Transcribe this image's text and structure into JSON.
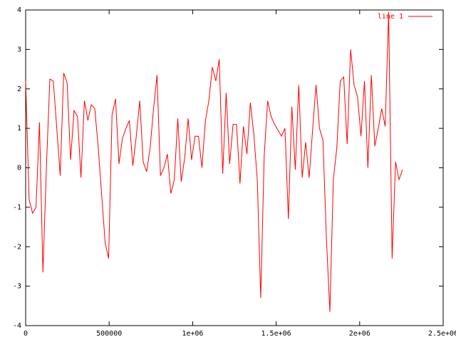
{
  "chart_data": {
    "type": "line",
    "x": [
      0,
      20700,
      41400,
      62100,
      82800,
      103500,
      124200,
      144900,
      165600,
      186300,
      207000,
      227700,
      248400,
      269100,
      289800,
      310500,
      331200,
      351900,
      372600,
      393300,
      414000,
      434700,
      455400,
      476100,
      496800,
      517500,
      538200,
      558900,
      579600,
      600300,
      621000,
      641700,
      662400,
      683100,
      703800,
      724500,
      745200,
      765900,
      786600,
      807300,
      828000,
      848700,
      869400,
      890100,
      910800,
      931500,
      952200,
      972900,
      993600,
      1014300,
      1035000,
      1055700,
      1076400,
      1097100,
      1117800,
      1138500,
      1159200,
      1179900,
      1200600,
      1221300,
      1242000,
      1262700,
      1283400,
      1304100,
      1324800,
      1345500,
      1366200,
      1386900,
      1407600,
      1428300,
      1449000,
      1469700,
      1490400,
      1511100,
      1531800,
      1552500,
      1573200,
      1593900,
      1614600,
      1635300,
      1656000,
      1676700,
      1697400,
      1718100,
      1738800,
      1759500,
      1780200,
      1800900,
      1821600,
      1842300,
      1863000,
      1883700,
      1904400,
      1925100,
      1945800,
      1966500,
      1987200,
      2007900,
      2028600,
      2049300,
      2070000,
      2090700,
      2111400,
      2132100,
      2152800,
      2173500,
      2194200,
      2214900,
      2235600,
      2256300
    ],
    "series": [
      {
        "name": "line 1",
        "color": "#ff0000",
        "values": [
          2.2,
          -0.8,
          -1.15,
          -1.0,
          1.15,
          -2.65,
          0,
          2.25,
          2.2,
          1.0,
          -0.2,
          2.4,
          2.15,
          0.2,
          1.45,
          1.3,
          -0.25,
          1.7,
          1.2,
          1.6,
          1.5,
          0.5,
          -0.7,
          -1.9,
          -2.3,
          1.35,
          1.75,
          0.1,
          0.75,
          1.0,
          1.2,
          0.05,
          0.8,
          1.7,
          0.15,
          -0.1,
          0.5,
          1.5,
          2.35,
          -0.2,
          0.0,
          0.35,
          -0.65,
          -0.3,
          1.25,
          -0.35,
          0.25,
          1.25,
          0.2,
          0.8,
          0.8,
          0.0,
          1.2,
          1.7,
          2.55,
          2.2,
          2.75,
          -0.15,
          1.9,
          0.1,
          1.1,
          1.1,
          -0.4,
          1.05,
          0.35,
          1.65,
          0.85,
          -0.3,
          -3.3,
          0.3,
          1.7,
          1.3,
          1.1,
          0.95,
          0.8,
          1.0,
          -1.3,
          1.55,
          -0.05,
          2.1,
          -0.25,
          0.65,
          -0.25,
          0.95,
          2.1,
          1.0,
          0.7,
          -1.8,
          -3.65,
          -0.3,
          0.5,
          2.2,
          2.3,
          0.6,
          3.0,
          2.1,
          1.8,
          0.8,
          2.2,
          0.0,
          2.35,
          0.55,
          1.0,
          1.5,
          1.05,
          3.95,
          -2.3,
          0.15,
          -0.3,
          -0.05
        ]
      }
    ],
    "xlim": [
      0,
      2500000
    ],
    "xticks": [
      0,
      500000,
      {
        "value": 1000000,
        "label": "1e+06"
      },
      {
        "value": 1500000,
        "label": "1.5e+06"
      },
      {
        "value": 2000000,
        "label": "2e+06"
      },
      {
        "value": 2500000,
        "label": "2.5e+06"
      }
    ],
    "ylim": [
      -4,
      4
    ],
    "yticks": [
      -4,
      -3,
      -2,
      -1,
      0,
      1,
      2,
      3,
      4
    ],
    "legend": "upper right"
  }
}
